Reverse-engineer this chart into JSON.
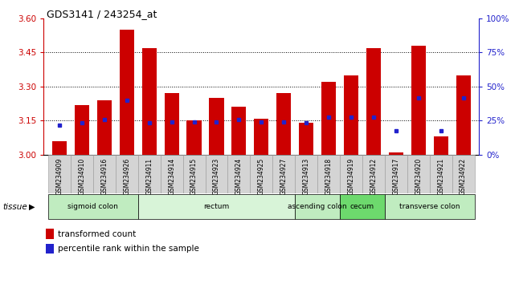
{
  "title": "GDS3141 / 243254_at",
  "samples": [
    "GSM234909",
    "GSM234910",
    "GSM234916",
    "GSM234926",
    "GSM234911",
    "GSM234914",
    "GSM234915",
    "GSM234923",
    "GSM234924",
    "GSM234925",
    "GSM234927",
    "GSM234913",
    "GSM234918",
    "GSM234919",
    "GSM234912",
    "GSM234917",
    "GSM234920",
    "GSM234921",
    "GSM234922"
  ],
  "bar_values": [
    3.06,
    3.22,
    3.24,
    3.55,
    3.47,
    3.27,
    3.15,
    3.25,
    3.21,
    3.16,
    3.27,
    3.14,
    3.32,
    3.35,
    3.47,
    3.01,
    3.48,
    3.08,
    3.35
  ],
  "blue_values": [
    3.13,
    3.14,
    3.155,
    3.24,
    3.14,
    3.145,
    3.145,
    3.145,
    3.155,
    3.145,
    3.145,
    3.14,
    3.165,
    3.165,
    3.165,
    3.105,
    3.25,
    3.105,
    3.25
  ],
  "ylim_left": [
    3.0,
    3.6
  ],
  "ylim_right": [
    0,
    100
  ],
  "yticks_left": [
    3.0,
    3.15,
    3.3,
    3.45,
    3.6
  ],
  "yticks_right": [
    0,
    25,
    50,
    75,
    100
  ],
  "bar_color": "#CC0000",
  "blue_color": "#2222CC",
  "bar_bottom": 3.0,
  "tissue_groups": [
    {
      "label": "sigmoid colon",
      "start": 0,
      "end": 3,
      "color": "#c0ecc0"
    },
    {
      "label": "rectum",
      "start": 4,
      "end": 10,
      "color": "#d8f4d8"
    },
    {
      "label": "ascending colon",
      "start": 11,
      "end": 12,
      "color": "#c0ecc0"
    },
    {
      "label": "cecum",
      "start": 13,
      "end": 14,
      "color": "#6dd96d"
    },
    {
      "label": "transverse colon",
      "start": 15,
      "end": 18,
      "color": "#c0ecc0"
    }
  ],
  "legend_items": [
    {
      "label": "transformed count",
      "color": "#CC0000"
    },
    {
      "label": "percentile rank within the sample",
      "color": "#2222CC"
    }
  ],
  "axis_color_left": "#CC0000",
  "axis_color_right": "#2222CC"
}
